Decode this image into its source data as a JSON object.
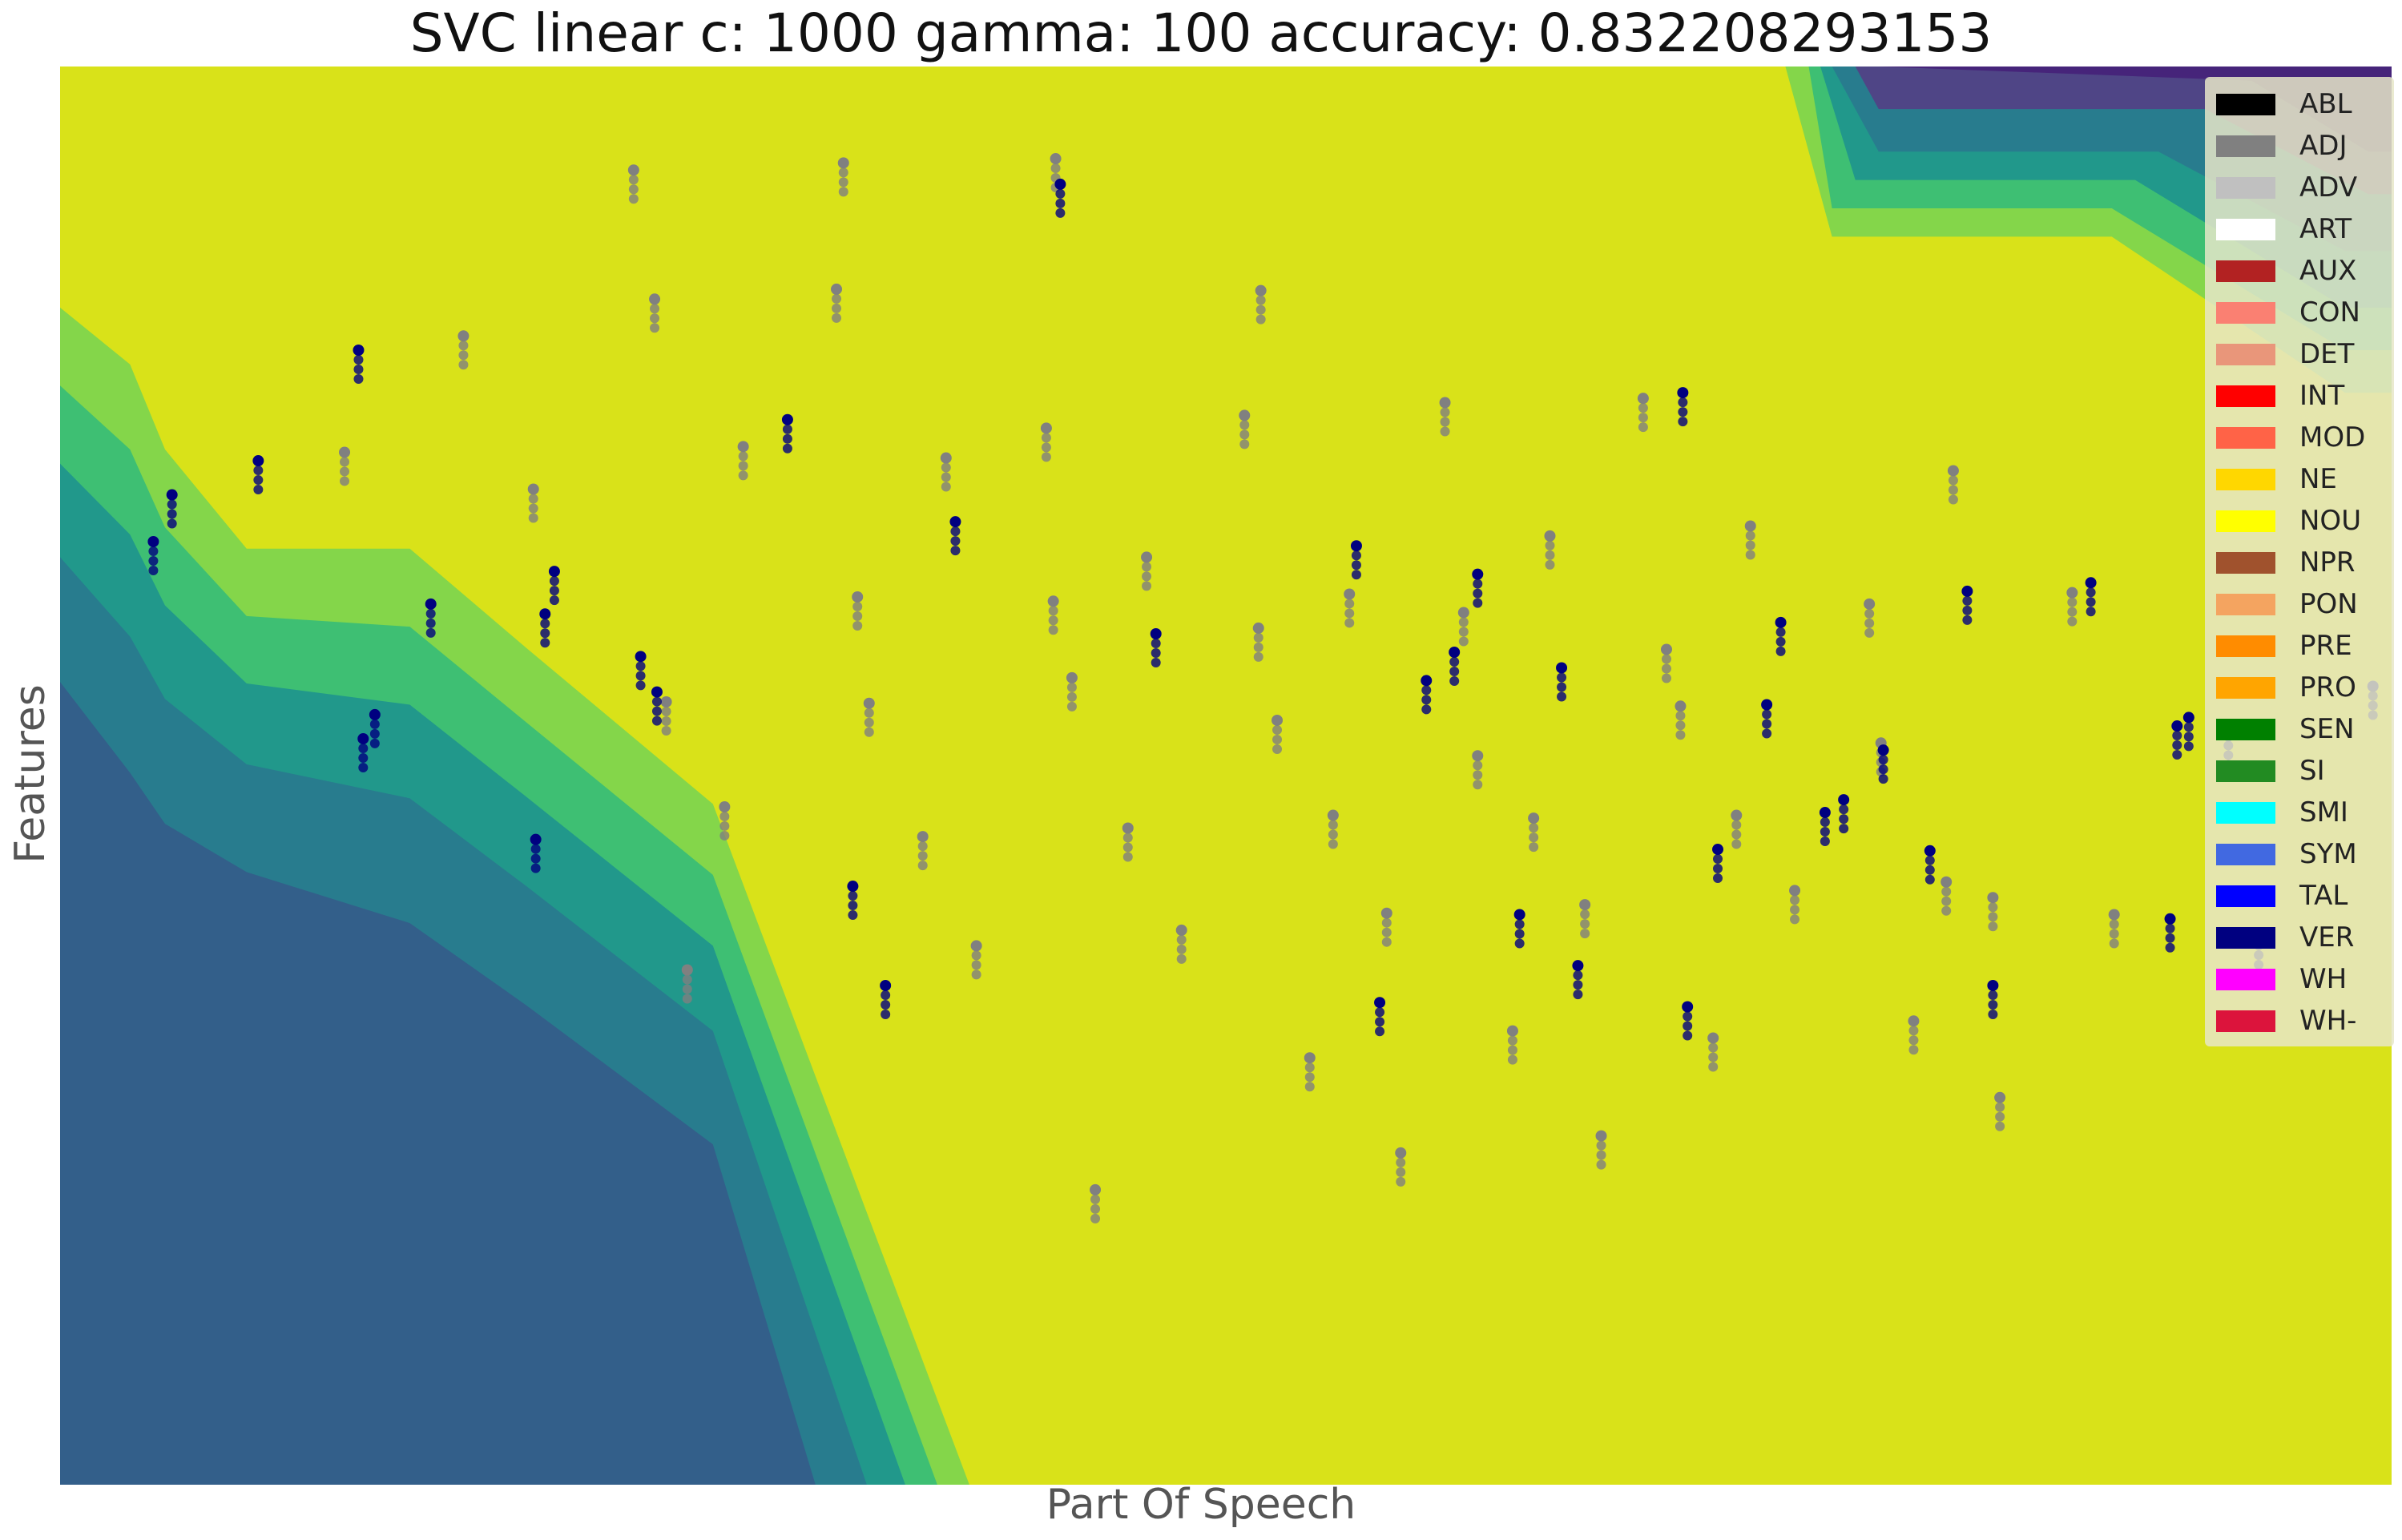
{
  "chart_data": {
    "type": "scatter",
    "title": "SVC linear c: 1000 gamma: 100 accuracy: 0.832208293153",
    "xlabel": "Part Of Speech",
    "ylabel": "Features",
    "xlim": [
      0,
      100
    ],
    "ylim": [
      0,
      100
    ],
    "grid": false,
    "legend_position": "right",
    "background_colors": [
      "#335f8a",
      "#287c8e",
      "#21988b",
      "#3ebf73",
      "#84d64a",
      "#d9e219",
      "#4f4586",
      "#46247a"
    ],
    "decision_region_boundaries": [
      {
        "level": "dark-blue",
        "color": "#335f8a",
        "x": [
          0,
          8,
          15,
          20,
          28,
          39,
          100
        ],
        "y": [
          10,
          45,
          45,
          40,
          28,
          0,
          0
        ]
      },
      {
        "level": "yellow",
        "color": "#d9e219",
        "x": [
          0,
          8,
          15,
          20,
          28,
          39,
          100
        ],
        "y": [
          83,
          73,
          66,
          59,
          48,
          0,
          0
        ]
      }
    ],
    "series": [
      {
        "name": "ADJ",
        "color": "#808080",
        "x": [
          24.6,
          33.6,
          42.7,
          51.5,
          17.3,
          25.5,
          33.3,
          42.3,
          50.8,
          59.4,
          67.9,
          12.2,
          20.3,
          29.3,
          38.0,
          46.6,
          55.3,
          63.9,
          72.5,
          81.2,
          34.2,
          42.6,
          51.4,
          60.2,
          68.9,
          77.6,
          86.3,
          26.0,
          34.7,
          43.4,
          52.2,
          60.8,
          69.5,
          78.1,
          28.5,
          37.0,
          45.8,
          54.6,
          63.2,
          71.9,
          80.9,
          39.3,
          48.1,
          56.9,
          65.4,
          74.4,
          82.9,
          53.6,
          62.3,
          70.9,
          79.5,
          88.1,
          83.2,
          57.5,
          66.1,
          44.4,
          26.9
        ],
        "y": [
          92.7,
          93.2,
          93.5,
          84.2,
          81.0,
          83.6,
          84.3,
          74.5,
          75.4,
          76.3,
          76.6,
          72.8,
          70.2,
          73.2,
          72.4,
          65.4,
          62.8,
          66.9,
          67.6,
          71.5,
          62.6,
          62.3,
          60.4,
          61.5,
          58.9,
          62.1,
          62.9,
          55.2,
          55.1,
          56.9,
          53.9,
          51.4,
          54.9,
          52.3,
          47.8,
          45.7,
          46.3,
          47.2,
          47.0,
          47.2,
          42.5,
          38.0,
          39.1,
          40.3,
          40.9,
          41.9,
          41.4,
          30.1,
          32.0,
          31.5,
          32.7,
          40.2,
          27.3,
          23.4,
          24.6,
          20.8,
          36.3
        ]
      },
      {
        "name": "VER",
        "color": "#000080",
        "x": [
          42.9,
          12.8,
          8.5,
          4.0,
          13.5,
          20.8,
          31.2,
          38.4,
          47.0,
          55.6,
          64.4,
          73.2,
          81.8,
          90.8,
          99.2,
          93.0,
          90.5,
          4.8,
          13.0,
          15.9,
          20.4,
          21.2,
          24.9,
          25.6,
          34.0,
          35.4,
          60.8,
          59.8,
          69.6,
          73.8,
          78.2,
          82.9,
          87.1,
          91.3,
          94.3,
          76.5,
          56.6,
          65.1,
          69.8,
          75.7,
          62.6,
          80.2,
          58.6,
          71.1
        ],
        "y": [
          91.7,
          80.0,
          72.2,
          66.5,
          54.3,
          61.4,
          75.1,
          67.9,
          60.0,
          66.2,
          57.6,
          55.0,
          63.0,
          53.5,
          56.3,
          52.8,
          39.9,
          69.8,
          52.6,
          62.1,
          45.5,
          64.4,
          58.4,
          55.9,
          42.2,
          35.2,
          64.2,
          58.7,
          77.0,
          60.8,
          51.8,
          35.2,
          63.6,
          54.1,
          38.7,
          48.3,
          34.0,
          36.6,
          33.7,
          47.4,
          40.2,
          44.7,
          56.7,
          44.8
        ]
      }
    ]
  },
  "legend": {
    "items": [
      {
        "label": "ABL",
        "color": "#000000"
      },
      {
        "label": "ADJ",
        "color": "#808080"
      },
      {
        "label": "ADV",
        "color": "#c0c0c0"
      },
      {
        "label": "ART",
        "color": "#ffffff"
      },
      {
        "label": "AUX",
        "color": "#b22222"
      },
      {
        "label": "CON",
        "color": "#fa8072"
      },
      {
        "label": "DET",
        "color": "#e9967a"
      },
      {
        "label": "INT",
        "color": "#ff0000"
      },
      {
        "label": "MOD",
        "color": "#ff6347"
      },
      {
        "label": "NE",
        "color": "#ffd700"
      },
      {
        "label": "NOU",
        "color": "#ffff00"
      },
      {
        "label": "NPR",
        "color": "#a0522d"
      },
      {
        "label": "PON",
        "color": "#f4a460"
      },
      {
        "label": "PRE",
        "color": "#ff8c00"
      },
      {
        "label": "PRO",
        "color": "#ffa500"
      },
      {
        "label": "SEN",
        "color": "#008000"
      },
      {
        "label": "SI",
        "color": "#228b22"
      },
      {
        "label": "SMI",
        "color": "#00ffff"
      },
      {
        "label": "SYM",
        "color": "#4169e1"
      },
      {
        "label": "TAL",
        "color": "#0000ff"
      },
      {
        "label": "VER",
        "color": "#000080"
      },
      {
        "label": "WH",
        "color": "#ff00ff"
      },
      {
        "label": "WH-",
        "color": "#dc143c"
      }
    ]
  }
}
